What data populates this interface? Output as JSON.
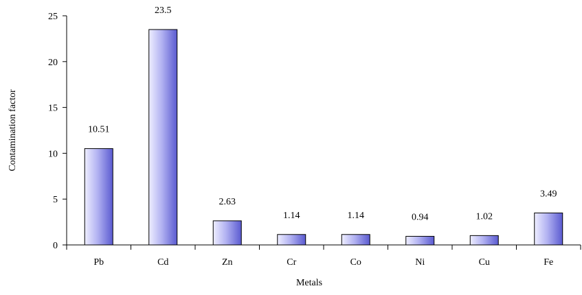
{
  "chart_data": {
    "type": "bar",
    "title": "",
    "xlabel": "Metals",
    "ylabel": "Contamination factor",
    "categories": [
      "Pb",
      "Cd",
      "Zn",
      "Cr",
      "Co",
      "Ni",
      "Cu",
      "Fe"
    ],
    "values": [
      10.51,
      23.5,
      2.63,
      1.14,
      1.14,
      0.94,
      1.02,
      3.49
    ],
    "data_labels": [
      "10.51",
      "23.5",
      "2.63",
      "1.14",
      "1.14",
      "0.94",
      "1.02",
      "3.49"
    ],
    "ylim": [
      0,
      25
    ],
    "yticks": [
      0,
      5,
      10,
      15,
      20,
      25
    ],
    "grid": false,
    "legend": "none",
    "colors": {
      "bar_light": "#eeeeff",
      "bar_mid": "#b3b3f2",
      "bar_dark": "#5a5ad0",
      "axis": "#000000"
    }
  }
}
